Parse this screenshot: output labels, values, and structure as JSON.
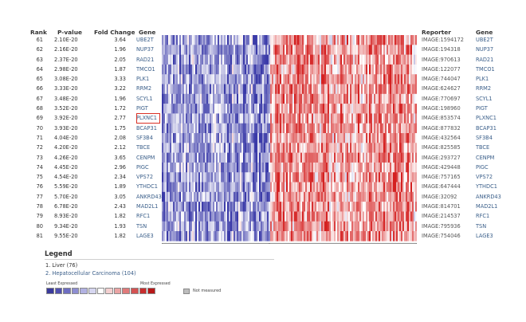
{
  "headers": {
    "rank": "Rank",
    "pvalue": "P-value",
    "fold_change": "Fold Change",
    "gene": "Gene",
    "reporter": "Reporter",
    "gene_right": "Gene"
  },
  "rows": [
    {
      "rank": "61",
      "pvalue": "2.10E-20",
      "fold": "3.64",
      "gene": "UBE2T",
      "reporter": "IMAGE:1594172"
    },
    {
      "rank": "62",
      "pvalue": "2.16E-20",
      "fold": "1.96",
      "gene": "NUP37",
      "reporter": "IMAGE:194318"
    },
    {
      "rank": "63",
      "pvalue": "2.37E-20",
      "fold": "2.05",
      "gene": "RAD21",
      "reporter": "IMAGE:970613"
    },
    {
      "rank": "64",
      "pvalue": "2.98E-20",
      "fold": "1.87",
      "gene": "TMCO1",
      "reporter": "IMAGE:122077"
    },
    {
      "rank": "65",
      "pvalue": "3.08E-20",
      "fold": "3.33",
      "gene": "PLK1",
      "reporter": "IMAGE:744047"
    },
    {
      "rank": "66",
      "pvalue": "3.33E-20",
      "fold": "3.22",
      "gene": "RRM2",
      "reporter": "IMAGE:624627"
    },
    {
      "rank": "67",
      "pvalue": "3.48E-20",
      "fold": "1.96",
      "gene": "SCYL1",
      "reporter": "IMAGE:770697"
    },
    {
      "rank": "68",
      "pvalue": "3.52E-20",
      "fold": "1.72",
      "gene": "PIGT",
      "reporter": "IMAGE:198960"
    },
    {
      "rank": "69",
      "pvalue": "3.92E-20",
      "fold": "2.77",
      "gene": "PLXNC1",
      "reporter": "IMAGE:853574"
    },
    {
      "rank": "70",
      "pvalue": "3.93E-20",
      "fold": "1.75",
      "gene": "BCAP31",
      "reporter": "IMAGE:877832"
    },
    {
      "rank": "71",
      "pvalue": "4.04E-20",
      "fold": "2.08",
      "gene": "SF3B4",
      "reporter": "IMAGE:432564"
    },
    {
      "rank": "72",
      "pvalue": "4.20E-20",
      "fold": "2.12",
      "gene": "TBCE",
      "reporter": "IMAGE:825585"
    },
    {
      "rank": "73",
      "pvalue": "4.26E-20",
      "fold": "3.65",
      "gene": "CENPM",
      "reporter": "IMAGE:293727"
    },
    {
      "rank": "74",
      "pvalue": "4.45E-20",
      "fold": "2.96",
      "gene": "PIGC",
      "reporter": "IMAGE:429448"
    },
    {
      "rank": "75",
      "pvalue": "4.54E-20",
      "fold": "2.34",
      "gene": "VPS72",
      "reporter": "IMAGE:757165"
    },
    {
      "rank": "76",
      "pvalue": "5.59E-20",
      "fold": "1.89",
      "gene": "YTHDC1",
      "reporter": "IMAGE:647444"
    },
    {
      "rank": "77",
      "pvalue": "5.70E-20",
      "fold": "3.05",
      "gene": "ANKRD43",
      "reporter": "IMAGE:32092"
    },
    {
      "rank": "78",
      "pvalue": "6.78E-20",
      "fold": "2.43",
      "gene": "MAD2L1",
      "reporter": "IMAGE:814701"
    },
    {
      "rank": "79",
      "pvalue": "8.93E-20",
      "fold": "1.82",
      "gene": "RFC1",
      "reporter": "IMAGE:214537"
    },
    {
      "rank": "80",
      "pvalue": "9.34E-20",
      "fold": "1.93",
      "gene": "TSN",
      "reporter": "IMAGE:795936"
    },
    {
      "rank": "81",
      "pvalue": "9.55E-20",
      "fold": "1.82",
      "gene": "LAGE3",
      "reporter": "IMAGE:754046"
    }
  ],
  "highlighted_gene": "PLXNC1",
  "groups": [
    "1",
    "2"
  ],
  "legend": {
    "title": "Legend",
    "items": [
      "1. Liver (76)",
      "2. Hepatocellular Carcinoma (104)"
    ],
    "least_label": "Least Expressed",
    "most_label": "Most Expressed",
    "not_measured_label": "Not measured",
    "swatch_colors": [
      "#3a3a9c",
      "#5050b0",
      "#6e6ec2",
      "#8e8ed2",
      "#b2b2e2",
      "#d6d6f0",
      "#ffffff",
      "#f4d0d0",
      "#eaa4a4",
      "#e07a7a",
      "#d45252",
      "#c82e2e",
      "#b81818"
    ],
    "not_measured_color": "#bdbdbd"
  },
  "colors": {
    "low": "#3a3aa8",
    "mid": "#ffffff",
    "high": "#d42020",
    "highlight_box": "#d93025",
    "link": "#3b5f8a"
  }
}
